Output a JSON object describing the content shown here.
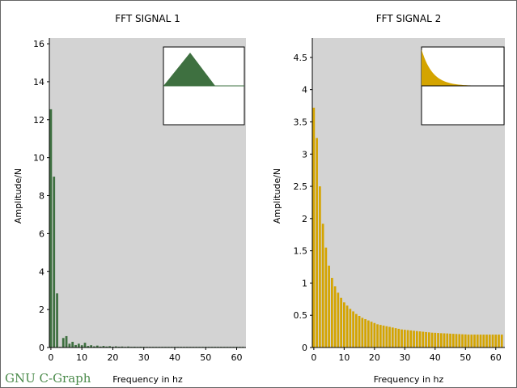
{
  "window": {
    "brand": "GNU C-Graph",
    "frame_color": "#666666"
  },
  "chart_data": [
    {
      "type": "bar",
      "title": "FFT SIGNAL 1",
      "xlabel": "Frequency in hz",
      "ylabel": "Amplitude/N",
      "xlim": [
        -0.5,
        63
      ],
      "ylim": [
        0,
        16.3
      ],
      "xticks": [
        0,
        10,
        20,
        30,
        40,
        50,
        60
      ],
      "yticks": [
        0,
        2,
        4,
        6,
        8,
        10,
        12,
        14,
        16
      ],
      "plot_background": "#d3d3d3",
      "bar_color": "#3e7040",
      "x": [
        0,
        1,
        2,
        3,
        4,
        5,
        6,
        7,
        8,
        9,
        10,
        11,
        12,
        13,
        14,
        15,
        16,
        17,
        18,
        19,
        20,
        21,
        22,
        23,
        24,
        25,
        26,
        27,
        28,
        29,
        30,
        31,
        32,
        33,
        34,
        35,
        36,
        37,
        38,
        39,
        40,
        41,
        42,
        43,
        44,
        45,
        46,
        47,
        48,
        49,
        50,
        51,
        52,
        53,
        54,
        55,
        56,
        57,
        58,
        59,
        60,
        61,
        62
      ],
      "values": [
        12.55,
        9.0,
        2.85,
        0.02,
        0.5,
        0.6,
        0.2,
        0.3,
        0.13,
        0.2,
        0.12,
        0.25,
        0.08,
        0.12,
        0.06,
        0.1,
        0.05,
        0.08,
        0.05,
        0.07,
        0.04,
        0.06,
        0.04,
        0.05,
        0.03,
        0.05,
        0.03,
        0.04,
        0.03,
        0.04,
        0.03,
        0.03,
        0.02,
        0.03,
        0.02,
        0.03,
        0.02,
        0.03,
        0.02,
        0.02,
        0.02,
        0.02,
        0.02,
        0.02,
        0.02,
        0.02,
        0.02,
        0.02,
        0.02,
        0.02,
        0.02,
        0.02,
        0.02,
        0.02,
        0.02,
        0.02,
        0.02,
        0.02,
        0.02,
        0.02,
        0.02,
        0.02,
        0.02
      ],
      "inset": {
        "shape": "triangle-pulse",
        "fill": "#3e7040"
      }
    },
    {
      "type": "bar",
      "title": "FFT SIGNAL 2",
      "xlabel": "Frequency in hz",
      "ylabel": "Amplitude/N",
      "xlim": [
        -0.5,
        63
      ],
      "ylim": [
        0,
        4.8
      ],
      "xticks": [
        0,
        10,
        20,
        30,
        40,
        50,
        60
      ],
      "yticks": [
        0,
        0.5,
        1,
        1.5,
        2,
        2.5,
        3,
        3.5,
        4,
        4.5
      ],
      "plot_background": "#d3d3d3",
      "bar_color": "#d4a400",
      "x": [
        0,
        1,
        2,
        3,
        4,
        5,
        6,
        7,
        8,
        9,
        10,
        11,
        12,
        13,
        14,
        15,
        16,
        17,
        18,
        19,
        20,
        21,
        22,
        23,
        24,
        25,
        26,
        27,
        28,
        29,
        30,
        31,
        32,
        33,
        34,
        35,
        36,
        37,
        38,
        39,
        40,
        41,
        42,
        43,
        44,
        45,
        46,
        47,
        48,
        49,
        50,
        51,
        52,
        53,
        54,
        55,
        56,
        57,
        58,
        59,
        60,
        61,
        62
      ],
      "values": [
        3.72,
        3.25,
        2.5,
        1.92,
        1.55,
        1.27,
        1.08,
        0.95,
        0.85,
        0.77,
        0.7,
        0.65,
        0.6,
        0.56,
        0.52,
        0.49,
        0.46,
        0.44,
        0.42,
        0.4,
        0.38,
        0.36,
        0.35,
        0.34,
        0.33,
        0.32,
        0.31,
        0.3,
        0.29,
        0.28,
        0.275,
        0.27,
        0.265,
        0.26,
        0.255,
        0.25,
        0.245,
        0.24,
        0.235,
        0.23,
        0.228,
        0.225,
        0.222,
        0.22,
        0.218,
        0.215,
        0.212,
        0.21,
        0.208,
        0.205,
        0.203,
        0.2,
        0.2,
        0.2,
        0.2,
        0.2,
        0.2,
        0.2,
        0.2,
        0.2,
        0.2,
        0.2,
        0.2
      ],
      "inset": {
        "shape": "exponential-decay",
        "fill": "#d4a400"
      }
    }
  ]
}
